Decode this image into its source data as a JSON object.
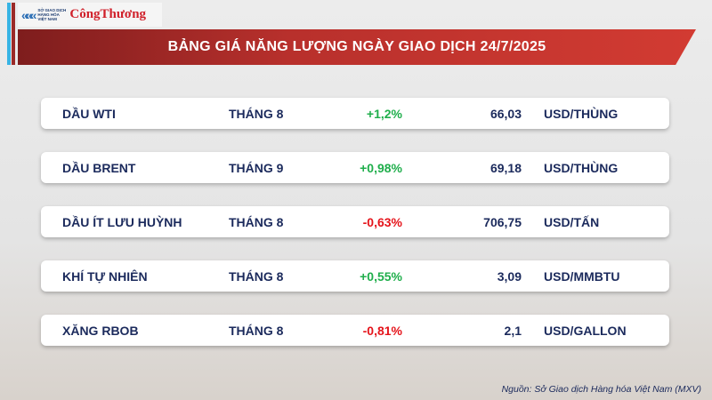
{
  "logo": {
    "sgd": "SỞ GIAO DỊCH HÀNG HÓA VIỆT NAM",
    "brand": "CôngThương"
  },
  "title": "BẢNG GIÁ NĂNG LƯỢNG NGÀY GIAO DỊCH 24/7/2025",
  "rows": [
    {
      "name": "DẦU WTI",
      "month": "THÁNG 8",
      "change": "+1,2%",
      "direction": "up",
      "price": "66,03",
      "unit": "USD/THÙNG"
    },
    {
      "name": "DẦU BRENT",
      "month": "THÁNG 9",
      "change": "+0,98%",
      "direction": "up",
      "price": "69,18",
      "unit": "USD/THÙNG"
    },
    {
      "name": "DẦU ÍT LƯU HUỲNH",
      "month": "THÁNG 8",
      "change": "-0,63%",
      "direction": "down",
      "price": "706,75",
      "unit": "USD/TẤN"
    },
    {
      "name": "KHÍ TỰ NHIÊN",
      "month": "THÁNG 8",
      "change": "+0,55%",
      "direction": "up",
      "price": "3,09",
      "unit": "USD/MMBTU"
    },
    {
      "name": "XĂNG RBOB",
      "month": "THÁNG 8",
      "change": "-0,81%",
      "direction": "down",
      "price": "2,1",
      "unit": "USD/GALLON"
    }
  ],
  "colors": {
    "up": "#1fae4b",
    "down": "#e5141b",
    "header": "#b8302c"
  },
  "source": "Nguồn: Sở Giao dịch Hàng hóa Việt Nam (MXV)"
}
